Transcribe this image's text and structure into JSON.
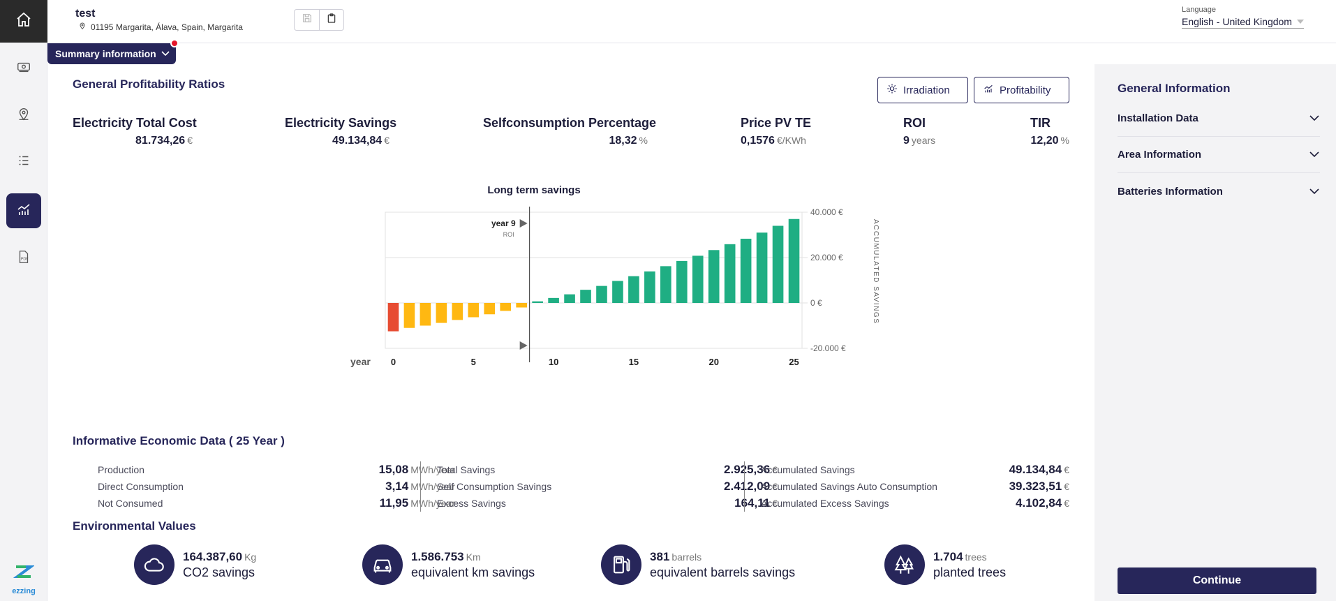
{
  "header": {
    "project_title": "test",
    "address": "01195 Margarita, Álava, Spain, Margarita",
    "language_label": "Language",
    "language_value": "English - United Kingdom"
  },
  "sidebar": {
    "logo_text": "ezzing",
    "items": [
      {
        "icon": "home-icon",
        "active": false
      },
      {
        "icon": "money-icon",
        "active": false
      },
      {
        "icon": "location-pin-icon",
        "active": false
      },
      {
        "icon": "list-icon",
        "active": false
      },
      {
        "icon": "chart-icon",
        "active": true
      },
      {
        "icon": "pdf-icon",
        "active": false
      }
    ]
  },
  "summary_tab": {
    "label": "Summary information"
  },
  "profitability": {
    "title": "General Profitability Ratios",
    "buttons": {
      "irradiation": "Irradiation",
      "profitability": "Profitability"
    },
    "ratios": [
      {
        "label": "Electricity Total Cost",
        "value": "81.734,26",
        "unit": "€"
      },
      {
        "label": "Electricity Savings",
        "value": "49.134,84",
        "unit": "€"
      },
      {
        "label": "Selfconsumption Percentage",
        "value": "18,32",
        "unit": "%"
      },
      {
        "label": "Price PV TE",
        "value": "0,1576",
        "unit": "€/KWh"
      },
      {
        "label": "ROI",
        "value": "9",
        "unit": "years"
      },
      {
        "label": "TIR",
        "value": "12,20",
        "unit": "%"
      }
    ]
  },
  "chart_data": {
    "type": "bar",
    "title": "Long term savings",
    "xlabel": "year",
    "ylabel": "ACCUMULATED SAVINGS",
    "x_ticks": [
      "0",
      "5",
      "10",
      "15",
      "20",
      "25"
    ],
    "y_ticks": [
      "40.000 €",
      "20.000 €",
      "0 €",
      "-20.000 €"
    ],
    "ylim": [
      -20000,
      40000
    ],
    "roi_marker": {
      "label": "year 9",
      "sublabel": "ROI",
      "year": 9
    },
    "categories": [
      0,
      1,
      2,
      3,
      4,
      5,
      6,
      7,
      8,
      9,
      10,
      11,
      12,
      13,
      14,
      15,
      16,
      17,
      18,
      19,
      20,
      21,
      22,
      23,
      24,
      25
    ],
    "values": [
      -12500,
      -11000,
      -10000,
      -8800,
      -7500,
      -6300,
      -5000,
      -3500,
      -2000,
      700,
      2200,
      3800,
      5800,
      7500,
      9700,
      11800,
      13900,
      16200,
      18500,
      20800,
      23300,
      25900,
      28300,
      31000,
      34000,
      37000
    ],
    "colors": {
      "first": "#e74c32",
      "negative": "#ffb812",
      "positive": "#1fae83"
    }
  },
  "economic": {
    "title": "Informative Economic Data ( 25 Year )",
    "columns": [
      [
        {
          "label": "Production",
          "value": "15,08",
          "unit": "MWh/year"
        },
        {
          "label": "Direct Consumption",
          "value": "3,14",
          "unit": "MWh/year"
        },
        {
          "label": "Not Consumed",
          "value": "11,95",
          "unit": "MWh/year"
        }
      ],
      [
        {
          "label": "Total Savings",
          "value": "2.925,36",
          "unit": "€"
        },
        {
          "label": "Self Consumption Savings",
          "value": "2.412,09",
          "unit": "€"
        },
        {
          "label": "Excess Savings",
          "value": "164,11",
          "unit": "€"
        }
      ],
      [
        {
          "label": "Accumulated Savings",
          "value": "49.134,84",
          "unit": "€"
        },
        {
          "label": "Accumulated Savings Auto Consumption",
          "value": "39.323,51",
          "unit": "€"
        },
        {
          "label": "Accumulated Excess Savings",
          "value": "4.102,84",
          "unit": "€"
        }
      ]
    ]
  },
  "environmental": {
    "title": "Environmental Values",
    "items": [
      {
        "icon": "cloud-icon",
        "value": "164.387,60",
        "unit": "Kg",
        "desc": "CO2 savings"
      },
      {
        "icon": "car-icon",
        "value": "1.586.753",
        "unit": "Km",
        "desc": "equivalent km savings"
      },
      {
        "icon": "fuel-pump-icon",
        "value": "381",
        "unit": "barrels",
        "desc": "equivalent barrels savings"
      },
      {
        "icon": "trees-icon",
        "value": "1.704",
        "unit": "trees",
        "desc": "planted trees"
      }
    ]
  },
  "right_panel": {
    "title": "General Information",
    "sections": [
      "Installation Data",
      "Area Information",
      "Batteries Information"
    ],
    "continue_label": "Continue"
  }
}
